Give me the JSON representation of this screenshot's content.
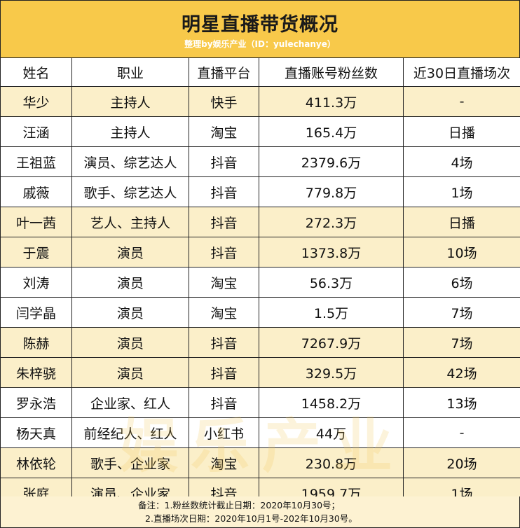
{
  "title": "明星直播带货概况",
  "subtitle": "整理by娱乐产业（ID：yulechanye）",
  "watermark": "娱乐产业",
  "headers": [
    "姓名",
    "职业",
    "直播平台",
    "直播账号粉丝数",
    "近30日直播场次"
  ],
  "rows": [
    [
      "华少",
      "主持人",
      "快手",
      "411.3万",
      "-"
    ],
    [
      "汪涵",
      "主持人",
      "淘宝",
      "165.4万",
      "日播"
    ],
    [
      "王祖蓝",
      "演员、综艺达人",
      "抖音",
      "2379.6万",
      "4场"
    ],
    [
      "戚薇",
      "歌手、综艺达人",
      "抖音",
      "779.8万",
      "1场"
    ],
    [
      "叶一茜",
      "艺人、主持人",
      "抖音",
      "272.3万",
      "日播"
    ],
    [
      "于震",
      "演员",
      "抖音",
      "1373.8万",
      "10场"
    ],
    [
      "刘涛",
      "演员",
      "淘宝",
      "56.3万",
      "6场"
    ],
    [
      "闫学晶",
      "演员",
      "淘宝",
      "1.5万",
      "7场"
    ],
    [
      "陈赫",
      "演员",
      "抖音",
      "7267.9万",
      "7场"
    ],
    [
      "朱梓骁",
      "演员",
      "抖音",
      "329.5万",
      "42场"
    ],
    [
      "罗永浩",
      "企业家、红人",
      "抖音",
      "1458.2万",
      "13场"
    ],
    [
      "杨天真",
      "前经纪人、红人",
      "小红书",
      "44万",
      "-"
    ],
    [
      "林依轮",
      "歌手、企业家",
      "淘宝",
      "230.8万",
      "20场"
    ],
    [
      "张庭",
      "演员、企业家",
      "抖音",
      "1959.7万",
      "1场"
    ]
  ],
  "row_shading": [
    "yellow",
    "white",
    "white",
    "white",
    "yellow",
    "yellow",
    "white",
    "white",
    "yellow",
    "yellow",
    "white",
    "white",
    "yellow",
    "yellow"
  ],
  "colors": {
    "title_bg": "#f8c94a",
    "row_yellow": "#fbefc9",
    "footer_bg": "#fdf2d2"
  },
  "notes": {
    "line1": "备注：1.粉丝数统计截止日期：2020年10月30号；",
    "line2": "2.直播场次日期：2020年10月1号-202年10月30号。"
  }
}
